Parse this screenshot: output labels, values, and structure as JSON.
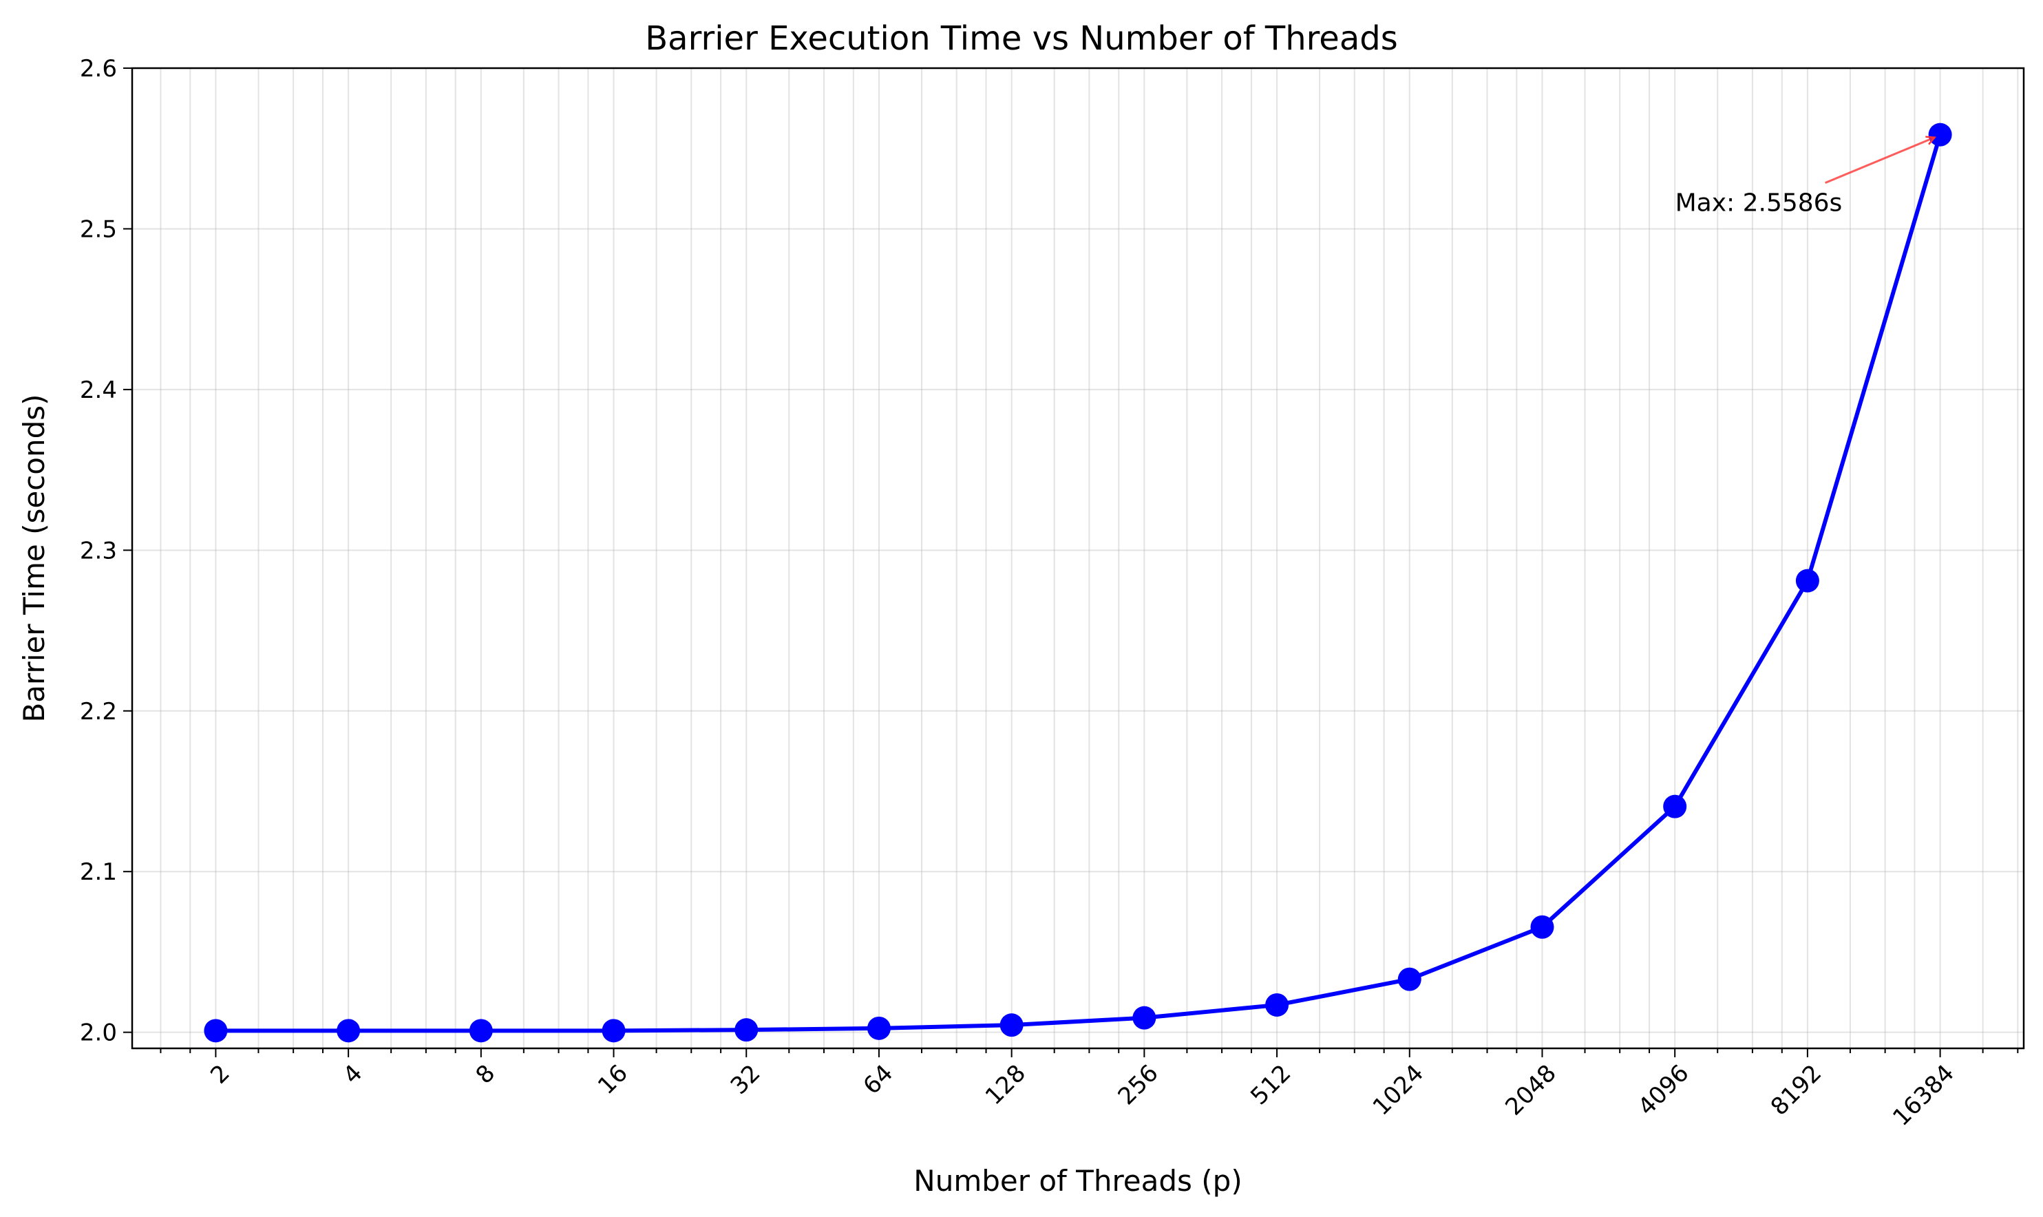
{
  "chart_data": {
    "type": "line",
    "title": "Barrier Execution Time vs Number of Threads",
    "xlabel": "Number of Threads (p)",
    "ylabel": "Barrier Time (seconds)",
    "x_scale": "log2",
    "x": [
      2,
      4,
      8,
      16,
      32,
      64,
      128,
      256,
      512,
      1024,
      2048,
      4096,
      8192,
      16384
    ],
    "x_tick_labels": [
      "2",
      "4",
      "8",
      "16",
      "32",
      "64",
      "128",
      "256",
      "512",
      "1024",
      "2048",
      "4096",
      "8192",
      "16384"
    ],
    "y_ticks": [
      "2.0",
      "2.1",
      "2.2",
      "2.3",
      "2.4",
      "2.5",
      "2.6"
    ],
    "series": [
      {
        "values": [
          2.001,
          2.001,
          2.001,
          2.001,
          2.0015,
          2.0025,
          2.0045,
          2.009,
          2.017,
          2.033,
          2.0655,
          2.1405,
          2.281,
          2.5586
        ],
        "color": "#0000ff"
      }
    ],
    "ylim": [
      1.99,
      2.6
    ],
    "grid": true,
    "legend": "none",
    "annotation": {
      "text": "Max: 2.5586s",
      "target_x": 16384,
      "target_y": 2.5586,
      "color": "#ff3333"
    }
  }
}
